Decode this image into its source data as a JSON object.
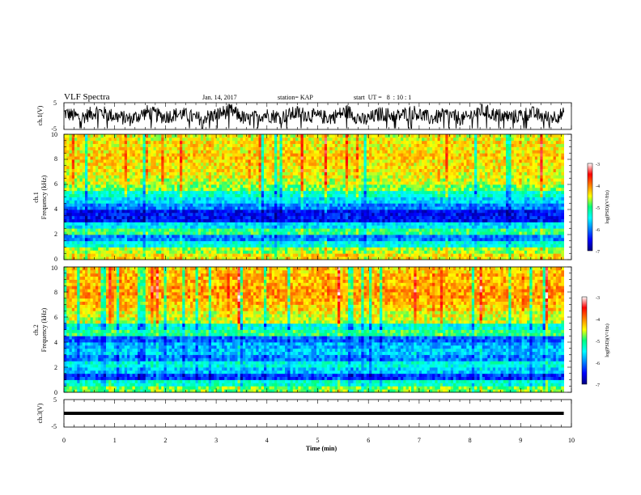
{
  "header": {
    "title": "VLF Spectra",
    "date": "Jan. 14, 2017",
    "station": "station= KAP",
    "start_ut": "start  UT =   8  : 10 : 1"
  },
  "chart_data": [
    {
      "type": "line",
      "panel": "ch1-waveform",
      "ylabel": "ch.1(V)",
      "ylim": [
        -5,
        5
      ],
      "y_ticks": [
        "5",
        "-5"
      ],
      "xlim": [
        0,
        10
      ],
      "data_end_min": 9.85,
      "series": [
        {
          "values": [
            2,
            -1,
            3,
            0,
            -2,
            2.5,
            -0.5,
            1.5,
            -1.5,
            0.5,
            3.5,
            -2.5,
            1,
            -0.5,
            2,
            0,
            -1,
            3,
            -3,
            1.5,
            0,
            2.5,
            -1.5,
            1,
            -2,
            3.5,
            0.5,
            -0.5,
            2,
            -1,
            1
          ]
        }
      ]
    },
    {
      "type": "heatmap",
      "panel": "ch1-spectrogram",
      "ylabel_top": "ch.1",
      "ylabel": "Frequency (kHz)",
      "ylim": [
        0,
        10
      ],
      "y_ticks": [
        "0",
        "2",
        "4",
        "6",
        "8",
        "10"
      ],
      "xlim": [
        0,
        10
      ],
      "data_end_min": 9.85,
      "colorbar": {
        "label": "log(PSD)(V²/Hz)",
        "range": [
          -7,
          -3
        ],
        "ticks": [
          "-3",
          "-4",
          "-5",
          "-6",
          "-7"
        ]
      },
      "band_levels_by_freq_kHz": {
        "freq": [
          0.25,
          0.75,
          1.25,
          1.75,
          2.25,
          2.75,
          3.25,
          3.75,
          4.25,
          4.75,
          5.25,
          5.75,
          6.25,
          6.75,
          7.25,
          7.75,
          8.25,
          8.75,
          9.25,
          9.75
        ],
        "log_psd": [
          -4.4,
          -4.7,
          -5.4,
          -6.0,
          -5.0,
          -5.6,
          -6.5,
          -6.5,
          -6.0,
          -5.6,
          -5.3,
          -4.8,
          -4.6,
          -4.5,
          -4.4,
          -4.4,
          -4.3,
          -4.4,
          -4.4,
          -4.5
        ]
      }
    },
    {
      "type": "heatmap",
      "panel": "ch2-spectrogram",
      "ylabel_top": "ch.2",
      "ylabel": "Frequency (kHz)",
      "ylim": [
        0,
        10
      ],
      "y_ticks": [
        "0",
        "2",
        "4",
        "6",
        "8",
        "10"
      ],
      "xlim": [
        0,
        10
      ],
      "data_end_min": 9.85,
      "colorbar": {
        "label": "log(PSD)(V²/Hz)",
        "range": [
          -7,
          -3
        ],
        "ticks": [
          "-3",
          "-4",
          "-5",
          "-6",
          "-7"
        ]
      },
      "band_levels_by_freq_kHz": {
        "freq": [
          0.25,
          0.75,
          1.25,
          1.75,
          2.25,
          2.75,
          3.25,
          3.75,
          4.25,
          4.75,
          5.25,
          5.75,
          6.25,
          6.75,
          7.25,
          7.75,
          8.25,
          8.75,
          9.25,
          9.75
        ],
        "log_psd": [
          -4.8,
          -5.3,
          -6.3,
          -5.7,
          -5.4,
          -6.0,
          -5.7,
          -5.8,
          -6.1,
          -5.0,
          -5.4,
          -4.6,
          -4.5,
          -4.3,
          -4.2,
          -4.1,
          -4.1,
          -4.2,
          -4.2,
          -4.3
        ]
      }
    },
    {
      "type": "line",
      "panel": "ch3-waveform",
      "ylabel": "ch.3(V)",
      "ylim": [
        -5,
        5
      ],
      "y_ticks": [
        "5",
        "-5"
      ],
      "xlim": [
        0,
        10
      ],
      "data_end_min": 9.85,
      "series": [
        {
          "values": [
            0,
            0
          ]
        }
      ],
      "xlabel": "Time (min)",
      "x_ticks": [
        "0",
        "1",
        "2",
        "3",
        "4",
        "5",
        "6",
        "7",
        "8",
        "9",
        "10"
      ]
    }
  ]
}
